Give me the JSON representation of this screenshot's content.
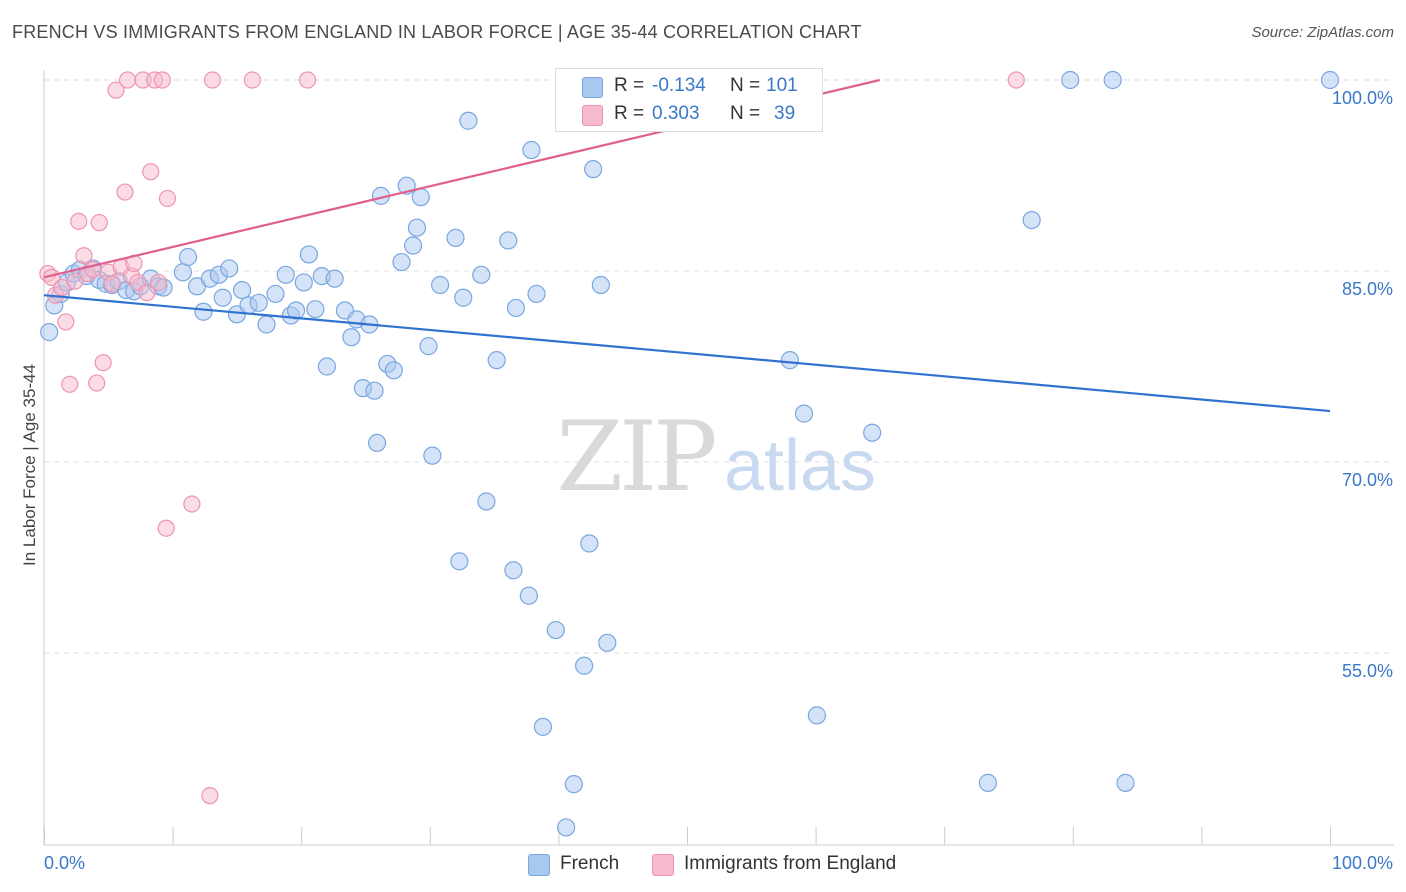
{
  "title": "FRENCH VS IMMIGRANTS FROM ENGLAND IN LABOR FORCE | AGE 35-44 CORRELATION CHART",
  "source": "Source: ZipAtlas.com",
  "watermark": {
    "zip": "ZIP",
    "atlas": "atlas"
  },
  "legend": {
    "r_label": "R =",
    "n_label": "N =",
    "rows": [
      {
        "r": "-0.134",
        "n": "101"
      },
      {
        "r": "0.303",
        "n": "39"
      }
    ]
  },
  "colors": {
    "french_fill": "#a9c8f0",
    "french_stroke": "#7aa7e0",
    "french_line": "#2f72cf",
    "england_fill": "#f7b9cc",
    "england_stroke": "#ef94b0",
    "england_line": "#e0608c",
    "axis_label": "#3a78c8",
    "grid": "#dddddd"
  },
  "chart_data": {
    "type": "scatter",
    "title": "FRENCH VS IMMIGRANTS FROM ENGLAND IN LABOR FORCE | AGE 35-44 CORRELATION CHART",
    "xlabel": "",
    "ylabel": "In Labor Force | Age 35-44",
    "xlim": [
      0,
      100
    ],
    "ylim": [
      41,
      102
    ],
    "x_tick_labels": [
      "0.0%",
      "100.0%"
    ],
    "y_ticks": [
      {
        "value": 100,
        "label": "100.0%"
      },
      {
        "value": 85,
        "label": "85.0%"
      },
      {
        "value": 70,
        "label": "70.0%"
      },
      {
        "value": 55,
        "label": "55.0%"
      }
    ],
    "grid": true,
    "legend_position": "top-center",
    "series": [
      {
        "name": "French",
        "r": -0.134,
        "n": 101,
        "trend": {
          "x": [
            0,
            100
          ],
          "y": [
            83.1,
            74.0
          ]
        },
        "points": [
          [
            0.4,
            80.2
          ],
          [
            0.8,
            82.3
          ],
          [
            1.3,
            83.2
          ],
          [
            1.8,
            84.1
          ],
          [
            2.3,
            84.8
          ],
          [
            2.8,
            85.1
          ],
          [
            3.3,
            84.6
          ],
          [
            3.8,
            85.2
          ],
          [
            4.3,
            84.3
          ],
          [
            4.8,
            84.0
          ],
          [
            5.3,
            83.9
          ],
          [
            5.8,
            84.2
          ],
          [
            6.4,
            83.5
          ],
          [
            7.0,
            83.4
          ],
          [
            7.5,
            83.8
          ],
          [
            8.3,
            84.4
          ],
          [
            8.9,
            83.8
          ],
          [
            9.3,
            83.7
          ],
          [
            10.8,
            84.9
          ],
          [
            11.2,
            86.1
          ],
          [
            11.9,
            83.8
          ],
          [
            12.4,
            81.8
          ],
          [
            12.9,
            84.4
          ],
          [
            13.6,
            84.7
          ],
          [
            13.9,
            82.9
          ],
          [
            14.4,
            85.2
          ],
          [
            15.0,
            81.6
          ],
          [
            15.4,
            83.5
          ],
          [
            15.9,
            82.3
          ],
          [
            16.7,
            82.5
          ],
          [
            17.3,
            80.8
          ],
          [
            18.0,
            83.2
          ],
          [
            18.8,
            84.7
          ],
          [
            19.2,
            81.5
          ],
          [
            19.6,
            81.9
          ],
          [
            20.2,
            84.1
          ],
          [
            20.6,
            86.3
          ],
          [
            21.1,
            82.0
          ],
          [
            21.6,
            84.6
          ],
          [
            22.0,
            77.5
          ],
          [
            22.6,
            84.4
          ],
          [
            23.4,
            81.9
          ],
          [
            23.9,
            79.8
          ],
          [
            24.3,
            81.2
          ],
          [
            24.8,
            75.8
          ],
          [
            25.3,
            80.8
          ],
          [
            25.7,
            75.6
          ],
          [
            25.9,
            71.5
          ],
          [
            26.2,
            90.9
          ],
          [
            26.7,
            77.7
          ],
          [
            27.2,
            77.2
          ],
          [
            27.8,
            85.7
          ],
          [
            28.2,
            91.7
          ],
          [
            28.7,
            87.0
          ],
          [
            29.0,
            88.4
          ],
          [
            29.3,
            90.8
          ],
          [
            29.9,
            79.1
          ],
          [
            30.2,
            70.5
          ],
          [
            30.8,
            83.9
          ],
          [
            32.0,
            87.6
          ],
          [
            32.3,
            62.2
          ],
          [
            32.6,
            82.9
          ],
          [
            33.0,
            96.8
          ],
          [
            34.0,
            84.7
          ],
          [
            34.4,
            66.9
          ],
          [
            35.2,
            78.0
          ],
          [
            36.1,
            87.4
          ],
          [
            36.5,
            61.5
          ],
          [
            36.7,
            82.1
          ],
          [
            37.7,
            59.5
          ],
          [
            37.9,
            94.5
          ],
          [
            38.3,
            83.2
          ],
          [
            38.8,
            49.2
          ],
          [
            39.8,
            56.8
          ],
          [
            40.6,
            41.3
          ],
          [
            41.2,
            44.7
          ],
          [
            41.7,
            100.0
          ],
          [
            42.0,
            54.0
          ],
          [
            42.4,
            63.6
          ],
          [
            42.7,
            93.0
          ],
          [
            43.3,
            83.9
          ],
          [
            43.8,
            55.8
          ],
          [
            50.0,
            100.0
          ],
          [
            51.0,
            100.0
          ],
          [
            58.0,
            78.0
          ],
          [
            59.1,
            73.8
          ],
          [
            60.1,
            50.1
          ],
          [
            64.4,
            72.3
          ],
          [
            73.4,
            44.8
          ],
          [
            76.8,
            89.0
          ],
          [
            79.8,
            100.0
          ],
          [
            83.1,
            100.0
          ],
          [
            84.1,
            44.8
          ],
          [
            100.0,
            100.0
          ]
        ]
      },
      {
        "name": "Immigrants from England",
        "r": 0.303,
        "n": 39,
        "trend": {
          "x": [
            0,
            65
          ],
          "y": [
            84.5,
            100.0
          ]
        },
        "points": [
          [
            0.3,
            84.8
          ],
          [
            0.6,
            84.5
          ],
          [
            0.9,
            83.1
          ],
          [
            1.4,
            83.7
          ],
          [
            1.7,
            81.0
          ],
          [
            2.0,
            76.1
          ],
          [
            2.4,
            84.2
          ],
          [
            2.7,
            88.9
          ],
          [
            3.1,
            86.2
          ],
          [
            3.4,
            84.8
          ],
          [
            3.8,
            85.1
          ],
          [
            4.1,
            76.2
          ],
          [
            4.3,
            88.8
          ],
          [
            4.6,
            77.8
          ],
          [
            5.0,
            84.9
          ],
          [
            5.3,
            84.0
          ],
          [
            5.6,
            99.2
          ],
          [
            6.0,
            85.3
          ],
          [
            6.3,
            91.2
          ],
          [
            6.5,
            100.0
          ],
          [
            6.8,
            84.6
          ],
          [
            7.0,
            85.6
          ],
          [
            7.3,
            84.1
          ],
          [
            7.7,
            100.0
          ],
          [
            8.0,
            83.3
          ],
          [
            8.3,
            92.8
          ],
          [
            8.6,
            100.0
          ],
          [
            8.9,
            84.1
          ],
          [
            9.2,
            100.0
          ],
          [
            9.5,
            64.8
          ],
          [
            9.6,
            90.7
          ],
          [
            11.5,
            66.7
          ],
          [
            12.9,
            43.8
          ],
          [
            13.1,
            100.0
          ],
          [
            16.2,
            100.0
          ],
          [
            20.5,
            100.0
          ],
          [
            75.6,
            100.0
          ]
        ]
      }
    ]
  },
  "bottom_legend": [
    "French",
    "Immigrants from England"
  ]
}
